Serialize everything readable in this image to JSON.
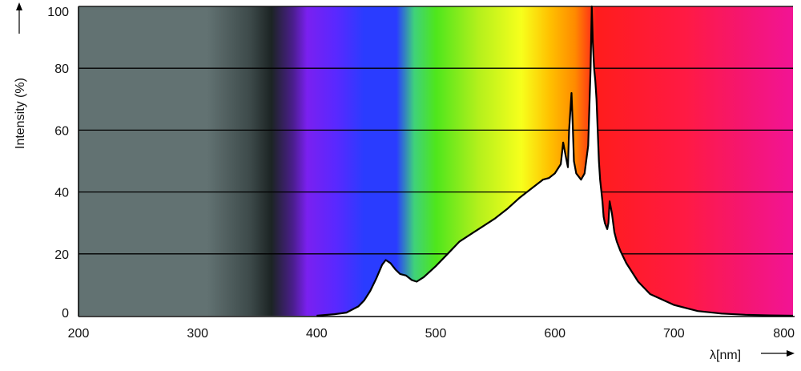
{
  "chart_data": {
    "type": "area",
    "title": "",
    "xlabel": "λ[nm]",
    "ylabel": "Intensity (%)",
    "xlim": [
      200,
      800
    ],
    "ylim": [
      0,
      100
    ],
    "grid": true,
    "x_ticks": [
      200,
      300,
      400,
      500,
      600,
      700,
      800
    ],
    "y_ticks": [
      0,
      20,
      40,
      60,
      80,
      100
    ],
    "series": [
      {
        "x": [
          400,
          415,
          425,
          435,
          440,
          445,
          450,
          455,
          458,
          462,
          466,
          470,
          475,
          480,
          484,
          490,
          500,
          510,
          520,
          530,
          540,
          550,
          560,
          570,
          580,
          590,
          595,
          600,
          605,
          607,
          609,
          611,
          612,
          614,
          615,
          616,
          618,
          620,
          622,
          625,
          628,
          630,
          631,
          632,
          633,
          634,
          635,
          636,
          637,
          638,
          640,
          641,
          642,
          643,
          644,
          645,
          646,
          648,
          650,
          652,
          655,
          660,
          670,
          680,
          700,
          720,
          740,
          760,
          780,
          800
        ],
        "values": [
          0,
          0.5,
          1,
          3,
          5,
          8,
          12,
          16.5,
          18,
          17,
          15,
          13.5,
          13,
          11.5,
          11,
          12.5,
          16,
          20,
          24,
          26.5,
          29,
          31.5,
          34.5,
          38,
          41,
          44,
          44.5,
          46,
          49,
          56,
          52,
          48,
          60,
          72,
          62,
          50,
          46,
          45,
          44,
          46,
          55,
          80,
          100,
          88,
          80,
          76,
          70,
          60,
          50,
          44,
          37,
          32,
          30,
          29,
          28,
          30,
          37,
          33,
          27,
          24,
          21,
          17,
          11,
          7,
          3.5,
          1.5,
          0.7,
          0.3,
          0.1,
          0
        ]
      }
    ],
    "colors": {
      "uv_region": "#627272",
      "uv_edge": "#1c2424",
      "violet": "#7a20f0",
      "blue": "#2a3cff",
      "cyan_green": "#3fd27a",
      "green": "#4ee61c",
      "yellow": "#f7ff1c",
      "orange": "#ff8a00",
      "red": "#ff1c1c",
      "magenta": "#f21495",
      "curve_fill": "#ffffff",
      "curve_line": "#000000",
      "grid": "#000000"
    }
  }
}
